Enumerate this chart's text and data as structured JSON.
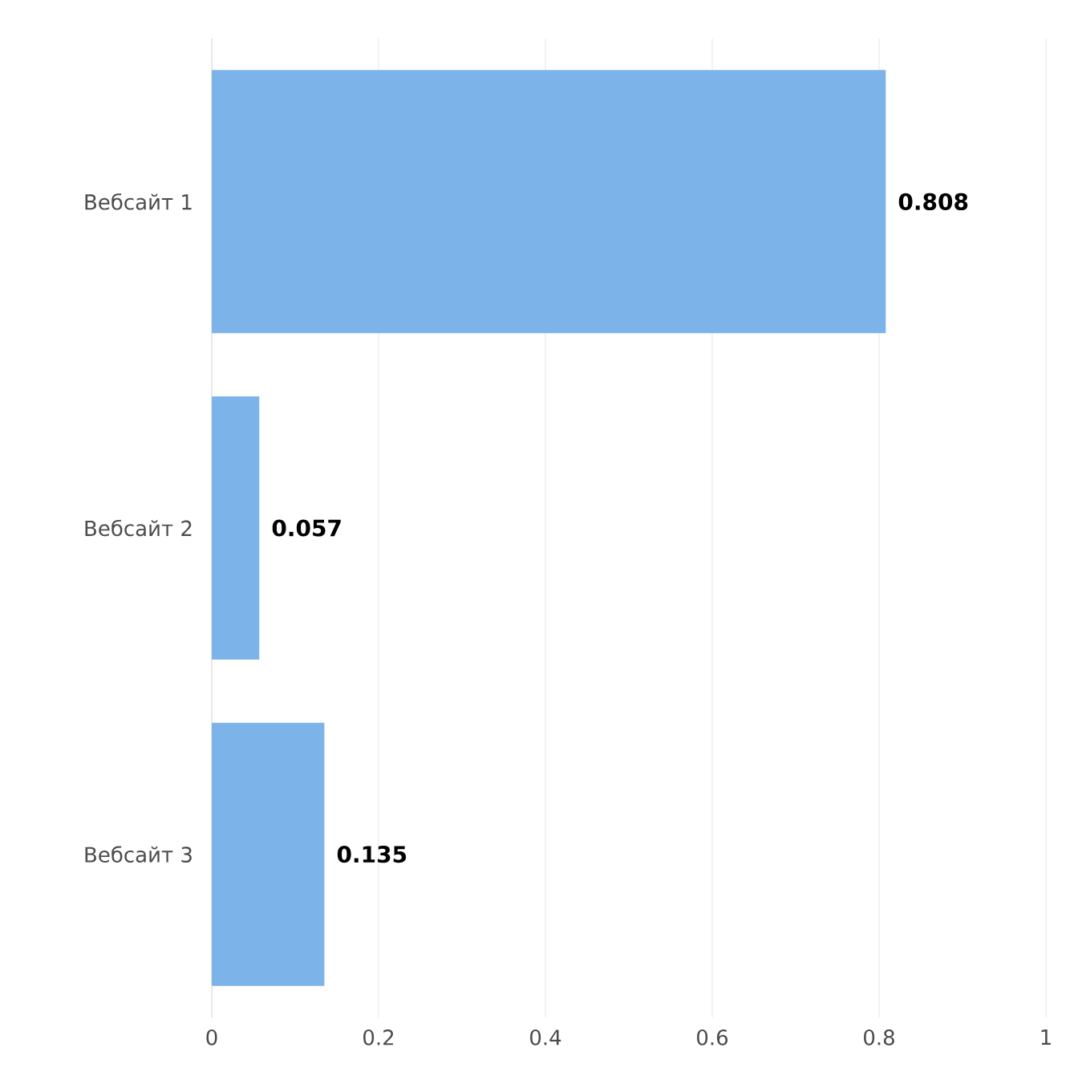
{
  "chart_data": {
    "type": "bar",
    "orientation": "horizontal",
    "categories": [
      "Вебсайт 1",
      "Вебсайт 2",
      "Вебсайт 3"
    ],
    "values": [
      0.808,
      0.057,
      0.135
    ],
    "color": "#7cb4ea",
    "xlim": [
      0,
      1
    ],
    "xticks": [
      0,
      0.2,
      0.4,
      0.6,
      0.8,
      1
    ],
    "grid": "x",
    "data_labels": true
  }
}
